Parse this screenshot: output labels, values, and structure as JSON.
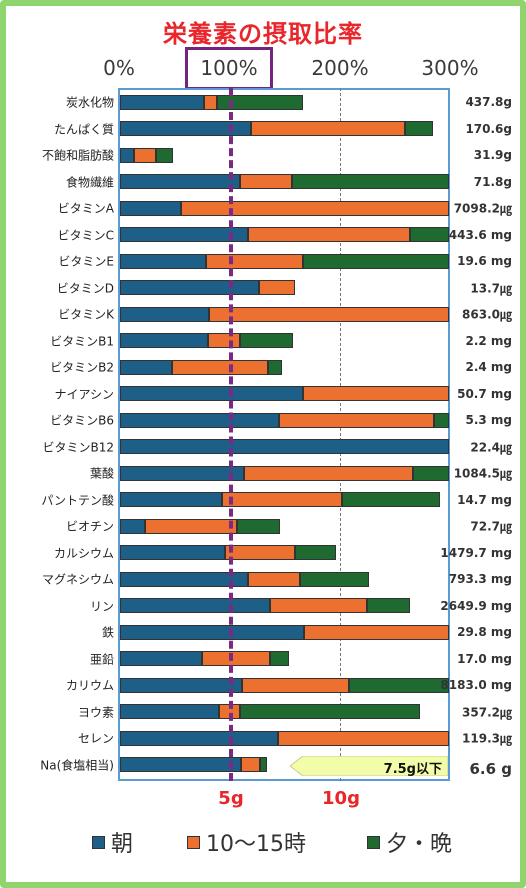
{
  "chart_data": {
    "type": "bar",
    "stacked": true,
    "orientation": "horizontal",
    "title": "栄養素の摂取比率",
    "x_tick_labels": [
      "0%",
      "100%",
      "200%",
      "300%"
    ],
    "xlim": [
      0,
      300
    ],
    "highlighted_tick": "100%",
    "series": [
      {
        "name": "朝",
        "color": "#1d5f86"
      },
      {
        "name": "10～15時",
        "color": "#ec7030"
      },
      {
        "name": "夕・晩",
        "color": "#1e6a31"
      }
    ],
    "rows": [
      {
        "label": "炭水化物",
        "amount": "437.8g",
        "values": [
          77,
          11,
          79
        ]
      },
      {
        "label": "たんぱく質",
        "amount": "170.6g",
        "values": [
          119,
          141,
          25
        ]
      },
      {
        "label": "不飽和脂肪酸",
        "amount": "31.9g",
        "values": [
          13,
          20,
          15
        ]
      },
      {
        "label": "食物繊維",
        "amount": "71.8g",
        "values": [
          109,
          48,
          143
        ]
      },
      {
        "label": "ビタミンA",
        "amount": "7098.2㎍",
        "values": [
          56,
          244,
          0
        ]
      },
      {
        "label": "ビタミンC",
        "amount": "443.6 mg",
        "values": [
          117,
          147,
          36
        ]
      },
      {
        "label": "ビタミンE",
        "amount": "19.6 mg",
        "values": [
          78,
          89,
          133
        ]
      },
      {
        "label": "ビタミンD",
        "amount": "13.7㎍",
        "values": [
          127,
          33,
          0
        ]
      },
      {
        "label": "ビタミンK",
        "amount": "863.0㎍",
        "values": [
          81,
          219,
          0
        ]
      },
      {
        "label": "ビタミンB1",
        "amount": "2.2 mg",
        "values": [
          80,
          29,
          49
        ]
      },
      {
        "label": "ビタミンB2",
        "amount": "2.4 mg",
        "values": [
          47,
          88,
          13
        ]
      },
      {
        "label": "ナイアシン",
        "amount": "50.7 mg",
        "values": [
          167,
          133,
          0
        ]
      },
      {
        "label": "ビタミンB6",
        "amount": "5.3 mg",
        "values": [
          145,
          141,
          14
        ]
      },
      {
        "label": "ビタミンB12",
        "amount": "22.4㎍",
        "values": [
          300,
          0,
          0
        ]
      },
      {
        "label": "葉酸",
        "amount": "1084.5㎍",
        "values": [
          113,
          154,
          33
        ]
      },
      {
        "label": "パントテン酸",
        "amount": "14.7 mg",
        "values": [
          93,
          109,
          90
        ]
      },
      {
        "label": "ビオチン",
        "amount": "72.7㎍",
        "values": [
          23,
          84,
          39
        ]
      },
      {
        "label": "カルシウム",
        "amount": "1479.7 mg",
        "values": [
          96,
          64,
          37
        ]
      },
      {
        "label": "マグネシウム",
        "amount": "793.3 mg",
        "values": [
          117,
          47,
          63
        ]
      },
      {
        "label": "リン",
        "amount": "2649.9 mg",
        "values": [
          137,
          88,
          39
        ]
      },
      {
        "label": "鉄",
        "amount": "29.8 mg",
        "values": [
          168,
          132,
          0
        ]
      },
      {
        "label": "亜鉛",
        "amount": "17.0 mg",
        "values": [
          75,
          62,
          17
        ]
      },
      {
        "label": "カリウム",
        "amount": "8183.0 mg",
        "values": [
          111,
          98,
          91
        ]
      },
      {
        "label": "ヨウ素",
        "amount": "357.2㎍",
        "values": [
          90,
          19,
          165
        ]
      },
      {
        "label": "セレン",
        "amount": "119.3㎍",
        "values": [
          144,
          156,
          0
        ]
      },
      {
        "label": "Na(食塩相当)",
        "amount": "6.6 g",
        "values": [
          110,
          18,
          6
        ]
      }
    ],
    "reference_line": 100,
    "salt_axis_labels": [
      "5g",
      "10g"
    ],
    "salt_target_label": "7.5g以下"
  },
  "legend": [
    "朝",
    "10～15時",
    "夕・晩"
  ]
}
